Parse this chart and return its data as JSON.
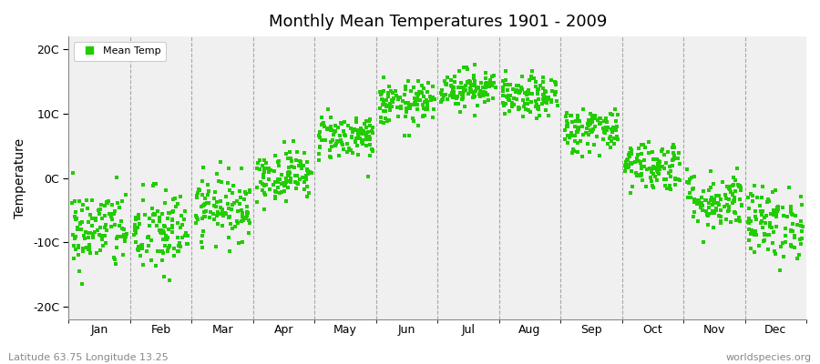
{
  "title": "Monthly Mean Temperatures 1901 - 2009",
  "ylabel": "Temperature",
  "xlabel_labels": [
    "Jan",
    "Feb",
    "Mar",
    "Apr",
    "May",
    "Jun",
    "Jul",
    "Aug",
    "Sep",
    "Oct",
    "Nov",
    "Dec"
  ],
  "yticks": [
    -20,
    -10,
    0,
    10,
    20
  ],
  "ytick_labels": [
    "-20C",
    "-10C",
    "0C",
    "10C",
    "20C"
  ],
  "ylim": [
    -22,
    22
  ],
  "xlim": [
    0,
    12
  ],
  "dot_color": "#22cc00",
  "plot_bg_color": "#f0f0f0",
  "figure_bg": "#ffffff",
  "footer_left": "Latitude 63.75 Longitude 13.25",
  "footer_right": "worldspecies.org",
  "legend_label": "Mean Temp",
  "years": 109,
  "monthly_means": [
    -8.0,
    -8.5,
    -4.5,
    0.5,
    6.5,
    11.5,
    14.0,
    12.5,
    7.5,
    2.0,
    -3.5,
    -7.0
  ],
  "monthly_stds": [
    3.2,
    3.5,
    2.5,
    2.0,
    1.8,
    1.7,
    1.5,
    1.6,
    1.8,
    2.0,
    2.3,
    2.8
  ],
  "seed": 42
}
